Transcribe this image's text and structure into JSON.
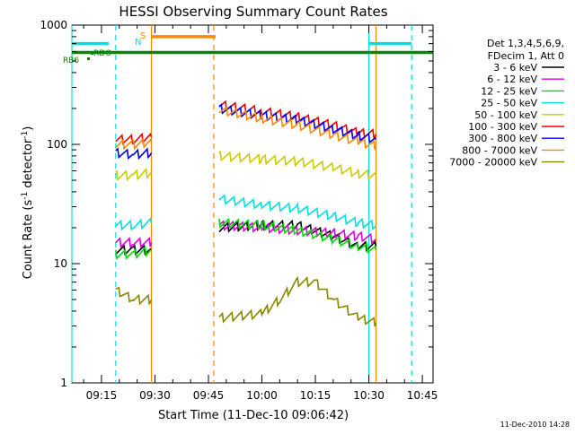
{
  "chart_data": {
    "type": "line",
    "title": "HESSI Observing Summary Count Rates",
    "xlabel": "Start Time (11-Dec-10 09:06:42)",
    "ylabel": "Count Rate (s⁻¹ detector⁻¹)",
    "ylabel_parts": {
      "base": "Count Rate (s",
      "exp1": "-1",
      "mid": " detector",
      "exp2": "-1",
      "end": ")"
    },
    "y_scale": "log",
    "ylim": [
      1,
      1000
    ],
    "xlim": [
      "09:06:42",
      "10:48:00"
    ],
    "x_ticks": [
      "09:15",
      "09:30",
      "09:45",
      "10:00",
      "10:15",
      "10:30",
      "10:45"
    ],
    "y_ticks": [
      "1",
      "10",
      "100",
      "1000"
    ],
    "grid": false,
    "legend_position": "right",
    "legend_header": [
      "Det 1,3,4,5,6,9,",
      "FDecim 1, Att 0"
    ],
    "footer_date": "11-Dec-2010 14:28",
    "segments": [
      [
        "09:19:00",
        "09:29:00"
      ],
      [
        "09:48:00",
        "10:32:00"
      ]
    ],
    "series": [
      {
        "name": "3 - 6 keV",
        "color": "#000000",
        "values": [
          [
            [
              "09:19",
              13
            ],
            [
              "09:24",
              13
            ],
            [
              "09:29",
              13
            ]
          ],
          [
            [
              "09:48",
              20
            ],
            [
              "10:00",
              21
            ],
            [
              "10:10",
              21
            ],
            [
              "10:20",
              17
            ],
            [
              "10:27",
              14
            ],
            [
              "10:32",
              14
            ]
          ]
        ]
      },
      {
        "name": "6 - 12 keV",
        "color": "#e000e0",
        "values": [
          [
            [
              "09:19",
              15
            ],
            [
              "09:24",
              15
            ],
            [
              "09:29",
              15
            ]
          ],
          [
            [
              "09:48",
              21
            ],
            [
              "10:00",
              20
            ],
            [
              "10:10",
              19
            ],
            [
              "10:20",
              18
            ],
            [
              "10:27",
              17
            ],
            [
              "10:32",
              16
            ]
          ]
        ]
      },
      {
        "name": "12 - 25 keV",
        "color": "#00dd00",
        "values": [
          [
            [
              "09:19",
              12
            ],
            [
              "09:24",
              12
            ],
            [
              "09:29",
              13
            ]
          ],
          [
            [
              "09:48",
              22
            ],
            [
              "10:00",
              21
            ],
            [
              "10:10",
              19
            ],
            [
              "10:20",
              16
            ],
            [
              "10:27",
              14
            ],
            [
              "10:32",
              13
            ]
          ]
        ]
      },
      {
        "name": "25 - 50 keV",
        "color": "#00e0e0",
        "values": [
          [
            [
              "09:19",
              21
            ],
            [
              "09:24",
              21
            ],
            [
              "09:29",
              22
            ]
          ],
          [
            [
              "09:48",
              35
            ],
            [
              "10:00",
              31
            ],
            [
              "10:10",
              29
            ],
            [
              "10:20",
              25
            ],
            [
              "10:27",
              22
            ],
            [
              "10:32",
              21
            ]
          ]
        ]
      },
      {
        "name": "50 - 100 keV",
        "color": "#cccc00",
        "values": [
          [
            [
              "09:19",
              55
            ],
            [
              "09:24",
              55
            ],
            [
              "09:29",
              58
            ]
          ],
          [
            [
              "09:48",
              80
            ],
            [
              "10:00",
              75
            ],
            [
              "10:10",
              72
            ],
            [
              "10:20",
              64
            ],
            [
              "10:27",
              57
            ],
            [
              "10:32",
              55
            ]
          ]
        ]
      },
      {
        "name": "100 - 300 keV",
        "color": "#ee0000",
        "values": [
          [
            [
              "09:19",
              110
            ],
            [
              "09:24",
              110
            ],
            [
              "09:29",
              115
            ]
          ],
          [
            [
              "09:48",
              215
            ],
            [
              "10:00",
              190
            ],
            [
              "10:10",
              170
            ],
            [
              "10:20",
              145
            ],
            [
              "10:27",
              125
            ],
            [
              "10:32",
              122
            ]
          ]
        ]
      },
      {
        "name": "300 - 800 keV",
        "color": "#0000ee",
        "values": [
          [
            [
              "09:19",
              85
            ],
            [
              "09:24",
              82
            ],
            [
              "09:29",
              85
            ]
          ],
          [
            [
              "09:48",
              200
            ],
            [
              "10:00",
              175
            ],
            [
              "10:10",
              160
            ],
            [
              "10:20",
              135
            ],
            [
              "10:27",
              118
            ],
            [
              "10:32",
              110
            ]
          ]
        ]
      },
      {
        "name": "800 - 7000 keV",
        "color": "#ff8800",
        "values": [
          [
            [
              "09:19",
              100
            ],
            [
              "09:24",
              100
            ],
            [
              "09:29",
              105
            ]
          ],
          [
            [
              "09:48",
              195
            ],
            [
              "10:00",
              165
            ],
            [
              "10:10",
              145
            ],
            [
              "10:20",
              120
            ],
            [
              "10:27",
              105
            ],
            [
              "10:32",
              97
            ]
          ]
        ]
      },
      {
        "name": "7000 - 20000 keV",
        "color": "#888800",
        "values": [
          [
            [
              "09:19",
              6
            ],
            [
              "09:24",
              5
            ],
            [
              "09:29",
              5
            ]
          ],
          [
            [
              "09:48",
              3.5
            ],
            [
              "10:00",
              3.8
            ],
            [
              "10:05",
              5
            ],
            [
              "10:10",
              7
            ],
            [
              "10:15",
              7
            ],
            [
              "10:20",
              5
            ],
            [
              "10:27",
              3.5
            ],
            [
              "10:32",
              3.2
            ]
          ]
        ]
      }
    ],
    "flag_bars": [
      {
        "label": "",
        "color": "#00e0e0",
        "y": 700,
        "spans": [
          [
            "09:06:42",
            "09:17:00"
          ],
          [
            "10:30:00",
            "10:42:00"
          ]
        ]
      },
      {
        "label": "S",
        "color": "#ff8800",
        "y": 800,
        "spans": [
          [
            "09:29:00",
            "09:47:00"
          ]
        ]
      },
      {
        "label": "N",
        "color": "#00e0e0",
        "y": 700,
        "spans": []
      },
      {
        "label": "RDO",
        "color": "#008800",
        "y": 590,
        "spans": []
      },
      {
        "label": "RB6",
        "color": "#008800",
        "y": 530,
        "spans": []
      }
    ],
    "orbit_line": {
      "color": "#008800",
      "y": 590,
      "span": [
        "09:06:42",
        "10:48:00"
      ]
    },
    "markers": [
      {
        "time": "09:06:42",
        "color": "#00e0e0",
        "style": "solid"
      },
      {
        "time": "09:19:00",
        "color": "#00e0e0",
        "style": "dashed"
      },
      {
        "time": "09:29:00",
        "color": "#ff8800",
        "style": "solid"
      },
      {
        "time": "09:46:30",
        "color": "#ff8800",
        "style": "dashed"
      },
      {
        "time": "10:30:00",
        "color": "#00e0e0",
        "style": "solid"
      },
      {
        "time": "10:32:00",
        "color": "#ff8800",
        "style": "solid"
      },
      {
        "time": "10:42:00",
        "color": "#00e0e0",
        "style": "dashed"
      }
    ]
  }
}
